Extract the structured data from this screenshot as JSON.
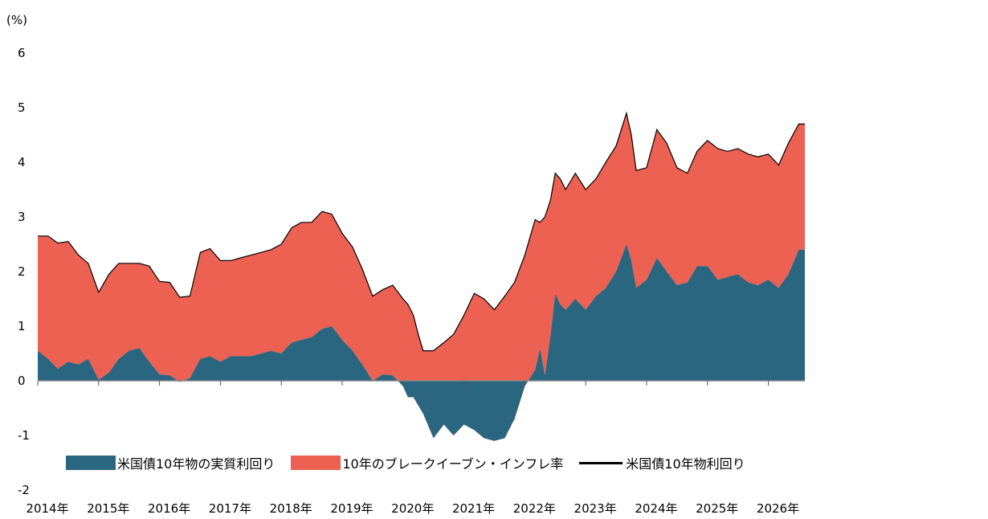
{
  "chart_data": {
    "type": "area",
    "unit_label": "(%)",
    "ylim": [
      -2,
      6
    ],
    "yticks": [
      "6",
      "5",
      "4",
      "3",
      "2",
      "1",
      "0",
      "-1",
      "-2"
    ],
    "xlim": [
      2014.0,
      2026.6
    ],
    "xticks": [
      "2014年",
      "2015年",
      "2016年",
      "2017年",
      "2018年",
      "2019年",
      "2020年",
      "2021年",
      "2022年",
      "2023年",
      "2024年",
      "2025年",
      "2026年"
    ],
    "legend_position": "bottom",
    "grid": false,
    "colors": {
      "real": "#2a6680",
      "breakeven": "#ec6152",
      "nominal": "#000000",
      "baseline": "#888888"
    },
    "series": [
      {
        "name": "米国債10年物の実質利回り",
        "x": [
          2014.0,
          2014.17,
          2014.33,
          2014.5,
          2014.67,
          2014.83,
          2015.0,
          2015.17,
          2015.33,
          2015.5,
          2015.67,
          2015.83,
          2016.0,
          2016.17,
          2016.33,
          2016.5,
          2016.67,
          2016.83,
          2017.0,
          2017.17,
          2017.33,
          2017.5,
          2017.67,
          2017.83,
          2018.0,
          2018.17,
          2018.33,
          2018.5,
          2018.67,
          2018.83,
          2019.0,
          2019.17,
          2019.33,
          2019.5,
          2019.67,
          2019.83,
          2020.0,
          2020.08,
          2020.17,
          2020.25,
          2020.33,
          2020.5,
          2020.67,
          2020.83,
          2021.0,
          2021.17,
          2021.33,
          2021.5,
          2021.67,
          2021.83,
          2022.0,
          2022.17,
          2022.25,
          2022.33,
          2022.42,
          2022.5,
          2022.58,
          2022.67,
          2022.83,
          2023.0,
          2023.17,
          2023.33,
          2023.5,
          2023.67,
          2023.75,
          2023.83,
          2024.0,
          2024.17,
          2024.33,
          2024.5,
          2024.67,
          2024.83,
          2025.0,
          2025.17,
          2025.33,
          2025.5,
          2025.67,
          2025.83,
          2026.0,
          2026.17,
          2026.33,
          2026.5,
          2026.6
        ],
        "values": [
          0.55,
          0.4,
          0.22,
          0.35,
          0.3,
          0.4,
          0.02,
          0.15,
          0.4,
          0.55,
          0.6,
          0.35,
          0.12,
          0.1,
          -0.02,
          0.05,
          0.4,
          0.45,
          0.35,
          0.45,
          0.45,
          0.45,
          0.5,
          0.55,
          0.5,
          0.7,
          0.75,
          0.8,
          0.95,
          1.0,
          0.75,
          0.55,
          0.3,
          0.0,
          0.12,
          0.1,
          -0.1,
          -0.3,
          -0.3,
          -0.45,
          -0.6,
          -1.05,
          -0.8,
          -1.0,
          -0.8,
          -0.9,
          -1.05,
          -1.1,
          -1.05,
          -0.7,
          -0.1,
          0.2,
          0.6,
          0.1,
          0.8,
          1.6,
          1.4,
          1.3,
          1.5,
          1.3,
          1.55,
          1.7,
          2.0,
          2.5,
          2.2,
          1.7,
          1.85,
          2.25,
          2.0,
          1.75,
          1.8,
          2.1,
          2.1,
          1.85,
          1.9,
          1.95,
          1.8,
          1.75,
          1.85,
          1.7,
          1.95,
          2.4,
          2.4
        ]
      },
      {
        "name": "10年のブレークイーブン・インフレ率",
        "x": [
          2014.0,
          2014.17,
          2014.33,
          2014.5,
          2014.67,
          2014.83,
          2015.0,
          2015.17,
          2015.33,
          2015.5,
          2015.67,
          2015.83,
          2016.0,
          2016.17,
          2016.33,
          2016.5,
          2016.67,
          2016.83,
          2017.0,
          2017.17,
          2017.33,
          2017.5,
          2017.67,
          2017.83,
          2018.0,
          2018.17,
          2018.33,
          2018.5,
          2018.67,
          2018.83,
          2019.0,
          2019.17,
          2019.33,
          2019.5,
          2019.67,
          2019.83,
          2020.0,
          2020.08,
          2020.17,
          2020.25,
          2020.33,
          2020.5,
          2020.67,
          2020.83,
          2021.0,
          2021.17,
          2021.33,
          2021.5,
          2021.67,
          2021.83,
          2022.0,
          2022.17,
          2022.25,
          2022.33,
          2022.42,
          2022.5,
          2022.58,
          2022.67,
          2022.83,
          2023.0,
          2023.17,
          2023.33,
          2023.5,
          2023.67,
          2023.75,
          2023.83,
          2024.0,
          2024.17,
          2024.33,
          2024.5,
          2024.67,
          2024.83,
          2025.0,
          2025.17,
          2025.33,
          2025.5,
          2025.67,
          2025.83,
          2026.0,
          2026.17,
          2026.33,
          2026.5,
          2026.6
        ],
        "values": [
          2.1,
          2.25,
          2.3,
          2.2,
          2.0,
          1.75,
          1.6,
          1.8,
          1.75,
          1.6,
          1.55,
          1.75,
          1.7,
          1.7,
          1.55,
          1.5,
          1.95,
          1.97,
          1.85,
          1.75,
          1.8,
          1.85,
          1.85,
          1.85,
          2.0,
          2.1,
          2.15,
          2.1,
          2.15,
          2.05,
          1.95,
          1.9,
          1.75,
          1.55,
          1.55,
          1.65,
          1.6,
          1.7,
          1.5,
          1.3,
          1.15,
          1.6,
          1.5,
          1.85,
          2.0,
          2.5,
          2.55,
          2.4,
          2.6,
          2.5,
          2.4,
          2.75,
          2.3,
          2.9,
          2.5,
          2.2,
          2.3,
          2.2,
          2.3,
          2.2,
          2.15,
          2.3,
          2.3,
          2.4,
          2.3,
          2.15,
          2.05,
          2.35,
          2.35,
          2.15,
          2.0,
          2.1,
          2.3,
          2.4,
          2.3,
          2.3,
          2.35,
          2.35,
          2.3,
          2.25,
          2.4,
          2.3,
          2.3
        ]
      },
      {
        "name": "米国債10年物利回り",
        "x": [
          2014.0,
          2014.17,
          2014.33,
          2014.5,
          2014.67,
          2014.83,
          2015.0,
          2015.17,
          2015.33,
          2015.5,
          2015.67,
          2015.83,
          2016.0,
          2016.17,
          2016.33,
          2016.5,
          2016.67,
          2016.83,
          2017.0,
          2017.17,
          2017.33,
          2017.5,
          2017.67,
          2017.83,
          2018.0,
          2018.17,
          2018.33,
          2018.5,
          2018.67,
          2018.83,
          2019.0,
          2019.17,
          2019.33,
          2019.5,
          2019.67,
          2019.83,
          2020.0,
          2020.08,
          2020.17,
          2020.25,
          2020.33,
          2020.5,
          2020.67,
          2020.83,
          2021.0,
          2021.17,
          2021.33,
          2021.5,
          2021.67,
          2021.83,
          2022.0,
          2022.17,
          2022.25,
          2022.33,
          2022.42,
          2022.5,
          2022.58,
          2022.67,
          2022.83,
          2023.0,
          2023.17,
          2023.33,
          2023.5,
          2023.67,
          2023.75,
          2023.83,
          2024.0,
          2024.17,
          2024.33,
          2024.5,
          2024.67,
          2024.83,
          2025.0,
          2025.17,
          2025.33,
          2025.5,
          2025.67,
          2025.83,
          2026.0,
          2026.17,
          2026.33,
          2026.5,
          2026.6
        ],
        "values": [
          2.65,
          2.65,
          2.52,
          2.55,
          2.3,
          2.15,
          1.62,
          1.95,
          2.15,
          2.15,
          2.15,
          2.1,
          1.82,
          1.8,
          1.53,
          1.55,
          2.35,
          2.42,
          2.2,
          2.2,
          2.25,
          2.3,
          2.35,
          2.4,
          2.5,
          2.8,
          2.9,
          2.9,
          3.1,
          3.05,
          2.7,
          2.45,
          2.05,
          1.55,
          1.67,
          1.75,
          1.5,
          1.4,
          1.2,
          0.85,
          0.55,
          0.55,
          0.7,
          0.85,
          1.2,
          1.6,
          1.5,
          1.3,
          1.55,
          1.8,
          2.3,
          2.95,
          2.9,
          3.0,
          3.3,
          3.8,
          3.7,
          3.5,
          3.8,
          3.5,
          3.7,
          4.0,
          4.3,
          4.9,
          4.5,
          3.85,
          3.9,
          4.6,
          4.35,
          3.9,
          3.8,
          4.2,
          4.4,
          4.25,
          4.2,
          4.25,
          4.15,
          4.1,
          4.15,
          3.95,
          4.35,
          4.7,
          4.7
        ]
      }
    ]
  }
}
